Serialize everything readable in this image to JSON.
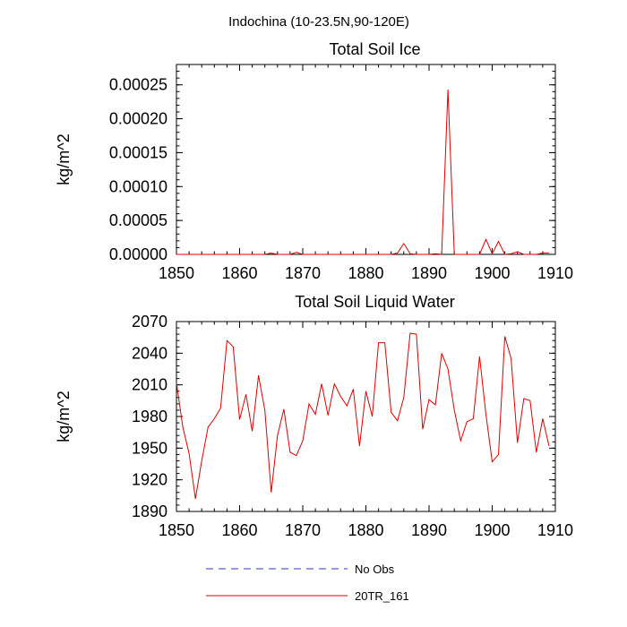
{
  "figure_title": "Indochina (10-23.5N,90-120E)",
  "legend": [
    {
      "label": "No Obs",
      "color": "#3333cc",
      "dash": true
    },
    {
      "label": "20TR_161",
      "color": "#e00000",
      "dash": false
    }
  ],
  "chart_data": [
    {
      "type": "line",
      "title": "Total Soil Ice",
      "xlabel": "",
      "ylabel": "kg/m^2",
      "xlim": [
        1850,
        1910
      ],
      "ylim": [
        0,
        0.00028
      ],
      "xticks": [
        1850,
        1860,
        1870,
        1880,
        1890,
        1900,
        1910
      ],
      "yticks": [
        0,
        5e-05,
        0.0001,
        0.00015,
        0.0002,
        0.00025
      ],
      "ytick_labels": [
        "0.00000",
        "0.00005",
        "0.00010",
        "0.00015",
        "0.00020",
        "0.00025"
      ],
      "grid": false,
      "series": [
        {
          "name": "20TR_161",
          "color": "#e00000",
          "x": [
            1850,
            1851,
            1852,
            1853,
            1854,
            1855,
            1856,
            1857,
            1858,
            1859,
            1860,
            1861,
            1862,
            1863,
            1864,
            1865,
            1866,
            1867,
            1868,
            1869,
            1870,
            1871,
            1872,
            1873,
            1874,
            1875,
            1876,
            1877,
            1878,
            1879,
            1880,
            1881,
            1882,
            1883,
            1884,
            1885,
            1886,
            1887,
            1888,
            1889,
            1890,
            1891,
            1892,
            1893,
            1894,
            1895,
            1896,
            1897,
            1898,
            1899,
            1900,
            1901,
            1902,
            1903,
            1904,
            1905,
            1906,
            1907,
            1908,
            1909
          ],
          "values": [
            0,
            0,
            0,
            0,
            0,
            0,
            0,
            0,
            0,
            0,
            0,
            0,
            0,
            0,
            0,
            2e-06,
            0,
            0,
            0,
            3e-06,
            0,
            0,
            0,
            0,
            0,
            0,
            0,
            0,
            0,
            0,
            0,
            0,
            0,
            0,
            0,
            2e-06,
            1.6e-05,
            1e-06,
            0,
            0,
            0,
            1e-06,
            0,
            0.000243,
            0,
            0,
            0,
            0,
            0,
            2.2e-05,
            1e-06,
            1.9e-05,
            0,
            1e-06,
            4e-06,
            0,
            0,
            0,
            2e-06,
            2e-06
          ]
        }
      ]
    },
    {
      "type": "line",
      "title": "Total Soil Liquid Water",
      "xlabel": "",
      "ylabel": "kg/m^2",
      "xlim": [
        1850,
        1910
      ],
      "ylim": [
        1890,
        2070
      ],
      "xticks": [
        1850,
        1860,
        1870,
        1880,
        1890,
        1900,
        1910
      ],
      "yticks": [
        1890,
        1920,
        1950,
        1980,
        2010,
        2040,
        2070
      ],
      "ytick_labels": [
        "1890",
        "1920",
        "1950",
        "1980",
        "2010",
        "2040",
        "2070"
      ],
      "grid": false,
      "series": [
        {
          "name": "20TR_161",
          "color": "#e00000",
          "x": [
            1850,
            1851,
            1852,
            1853,
            1854,
            1855,
            1856,
            1857,
            1858,
            1859,
            1860,
            1861,
            1862,
            1863,
            1864,
            1865,
            1866,
            1867,
            1868,
            1869,
            1870,
            1871,
            1872,
            1873,
            1874,
            1875,
            1876,
            1877,
            1878,
            1879,
            1880,
            1881,
            1882,
            1883,
            1884,
            1885,
            1886,
            1887,
            1888,
            1889,
            1890,
            1891,
            1892,
            1893,
            1894,
            1895,
            1896,
            1897,
            1898,
            1899,
            1900,
            1901,
            1902,
            1903,
            1904,
            1905,
            1906,
            1907,
            1908,
            1909
          ],
          "values": [
            2012,
            1970,
            1945,
            1902,
            1938,
            1970,
            1978,
            1988,
            2052,
            2046,
            1977,
            2001,
            1966,
            2019,
            1986,
            1908,
            1962,
            1987,
            1946,
            1943,
            1957,
            1992,
            1982,
            2011,
            1981,
            2011,
            1999,
            1990,
            2006,
            1952,
            2004,
            1980,
            2050,
            2050,
            1984,
            1976,
            1998,
            2059,
            2058,
            1968,
            1996,
            1991,
            2040,
            2025,
            1986,
            1957,
            1975,
            1978,
            2037,
            1982,
            1937,
            1944,
            2056,
            2035,
            1955,
            1997,
            1995,
            1946,
            1978,
            1952
          ]
        }
      ]
    }
  ]
}
